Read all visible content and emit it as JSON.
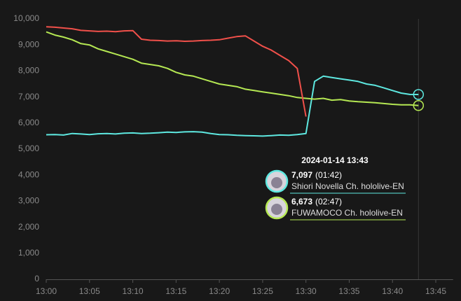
{
  "chart_data": {
    "type": "line",
    "x": [
      "13:00",
      "13:01",
      "13:02",
      "13:03",
      "13:04",
      "13:05",
      "13:06",
      "13:07",
      "13:08",
      "13:09",
      "13:10",
      "13:11",
      "13:12",
      "13:13",
      "13:14",
      "13:15",
      "13:16",
      "13:17",
      "13:18",
      "13:19",
      "13:20",
      "13:21",
      "13:22",
      "13:23",
      "13:24",
      "13:25",
      "13:26",
      "13:27",
      "13:28",
      "13:29",
      "13:30",
      "13:31",
      "13:32",
      "13:33",
      "13:34",
      "13:35",
      "13:36",
      "13:37",
      "13:38",
      "13:39",
      "13:40",
      "13:41",
      "13:42",
      "13:43"
    ],
    "series": [
      {
        "name": "Shiori Novella Ch. hololive-EN",
        "color": "#5ee8e0",
        "values": [
          5550,
          5560,
          5540,
          5600,
          5580,
          5560,
          5590,
          5600,
          5580,
          5610,
          5620,
          5600,
          5610,
          5630,
          5650,
          5640,
          5660,
          5670,
          5650,
          5600,
          5560,
          5550,
          5530,
          5520,
          5510,
          5500,
          5520,
          5540,
          5530,
          5560,
          5600,
          7600,
          7800,
          7750,
          7700,
          7650,
          7600,
          7500,
          7450,
          7350,
          7250,
          7150,
          7100,
          7097
        ]
      },
      {
        "name": "FUWAMOCO Ch. hololive-EN",
        "color": "#b5e853",
        "values": [
          9500,
          9380,
          9300,
          9200,
          9050,
          9000,
          8850,
          8750,
          8650,
          8550,
          8450,
          8300,
          8250,
          8200,
          8100,
          7950,
          7850,
          7800,
          7700,
          7600,
          7500,
          7450,
          7400,
          7300,
          7250,
          7200,
          7150,
          7100,
          7050,
          6980,
          6950,
          6920,
          6950,
          6880,
          6900,
          6850,
          6820,
          6800,
          6780,
          6750,
          6720,
          6700,
          6700,
          6673
        ]
      },
      {
        "color": "#f0504a",
        "values": [
          9700,
          9680,
          9650,
          9620,
          9560,
          9540,
          9520,
          9530,
          9510,
          9540,
          9550,
          9220,
          9180,
          9170,
          9150,
          9160,
          9140,
          9150,
          9170,
          9180,
          9200,
          9260,
          9320,
          9350,
          9150,
          8950,
          8800,
          8600,
          8400,
          8100,
          6250,
          null,
          null,
          null,
          null,
          null,
          null,
          null,
          null,
          null,
          null,
          null,
          null,
          null
        ]
      }
    ],
    "xlim": [
      "13:00",
      "13:47"
    ],
    "xticks": [
      "13:00",
      "13:05",
      "13:10",
      "13:15",
      "13:20",
      "13:25",
      "13:30",
      "13:35",
      "13:40",
      "13:45"
    ],
    "ylim": [
      0,
      10000
    ],
    "yticks": [
      0,
      {
        "value": 1000,
        "label": "1,000"
      },
      {
        "value": 2000,
        "label": "2,000"
      },
      {
        "value": 3000,
        "label": "3,000"
      },
      {
        "value": 4000,
        "label": "4,000"
      },
      {
        "value": 5000,
        "label": "5,000"
      },
      {
        "value": 6000,
        "label": "6,000"
      },
      {
        "value": 7000,
        "label": "7,000"
      },
      {
        "value": 8000,
        "label": "8,000"
      },
      {
        "value": 9000,
        "label": "9,000"
      },
      {
        "value": 10000,
        "label": "10,000"
      }
    ],
    "grid": false,
    "cursor_x": "13:43",
    "tooltip": {
      "title": "2024-01-14 13:43",
      "items": [
        {
          "value": "7,097",
          "duration": "(01:42)"
        },
        {
          "value": "6,673",
          "duration": "(02:47)"
        }
      ]
    }
  }
}
